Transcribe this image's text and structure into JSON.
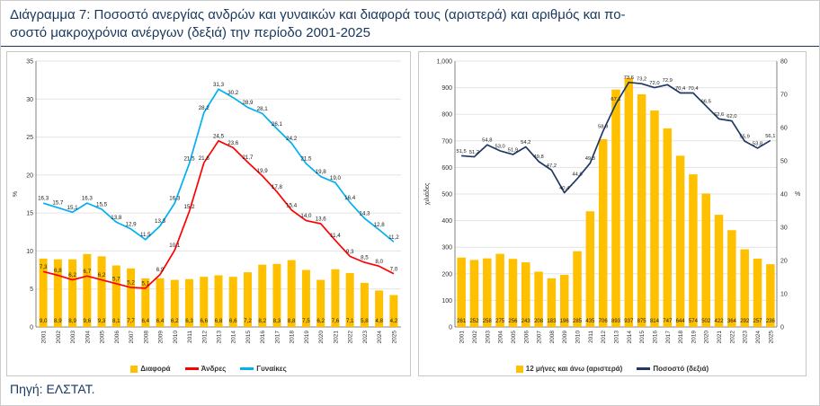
{
  "header": {
    "title_line1": "Διάγραμμα 7: Ποσοστό ανεργίας ανδρών και γυναικών και διαφορά τους (αριστερά) και αριθμός και πο-",
    "title_line2": "σοστό μακροχρόνια ανέργων (δεξιά) την περίοδο 2001-2025"
  },
  "footer": {
    "source": "Πηγή: ΕΛΣΤΑΤ."
  },
  "colors": {
    "accent_navy": "#17375E",
    "bar_yellow": "#FFC000",
    "line_red": "#FF0000",
    "line_lightblue": "#00B0F0",
    "line_navy": "#1F3864"
  },
  "chart_data": [
    {
      "name": "unemployment-rate-by-sex",
      "type": "bar+line",
      "grid": true,
      "legend_position": "bottom",
      "categories": [
        "2001",
        "2002",
        "2003",
        "2004",
        "2005",
        "2006",
        "2007",
        "2008",
        "2009",
        "2010",
        "2011",
        "2012",
        "2013",
        "2014",
        "2015",
        "2016",
        "2017",
        "2018",
        "2019",
        "2020",
        "2021",
        "2022",
        "2023",
        "2024",
        "2025"
      ],
      "axes": {
        "left": {
          "title": "%",
          "range": [
            0,
            35
          ],
          "ticks": [
            0,
            5,
            10,
            15,
            20,
            25,
            30,
            35
          ],
          "labels": [
            "0",
            "5",
            "10",
            "15",
            "20",
            "25",
            "30",
            "35"
          ]
        }
      },
      "series": [
        {
          "name": "Διαφορά",
          "type": "bar",
          "axis": "left",
          "color": "#FFC000",
          "label_mode": "bottom",
          "label_fmt": "dec1",
          "label_size": 6.2,
          "values": [
            9.0,
            8.9,
            8.9,
            9.6,
            9.3,
            8.1,
            7.7,
            6.4,
            6.4,
            6.2,
            6.3,
            6.6,
            6.8,
            6.6,
            7.2,
            8.2,
            8.3,
            8.8,
            7.5,
            6.2,
            7.6,
            7.1,
            5.8,
            4.8,
            4.2
          ]
        },
        {
          "name": "Άνδρες",
          "type": "line",
          "axis": "left",
          "color": "#FF0000",
          "label_mode": "above",
          "label_fmt": "dec1",
          "label_size": 6.2,
          "values": [
            7.3,
            6.8,
            6.2,
            6.7,
            6.2,
            5.7,
            5.2,
            5.1,
            6.9,
            10.1,
            15.2,
            21.6,
            24.5,
            23.6,
            21.7,
            19.9,
            17.8,
            15.4,
            14.0,
            13.6,
            11.4,
            9.3,
            8.5,
            8.0,
            7.0
          ]
        },
        {
          "name": "Γυναίκες",
          "type": "line",
          "axis": "left",
          "color": "#00B0F0",
          "label_mode": "above",
          "label_fmt": "dec1",
          "label_size": 6.2,
          "values": [
            16.3,
            15.7,
            15.1,
            16.3,
            15.5,
            13.8,
            12.9,
            11.5,
            13.3,
            16.3,
            21.5,
            28.2,
            31.3,
            30.2,
            28.9,
            28.1,
            26.1,
            24.2,
            21.5,
            19.8,
            19.0,
            16.4,
            14.3,
            12.8,
            11.2
          ]
        }
      ]
    },
    {
      "name": "long-term-unemployed",
      "type": "bar+line",
      "grid": true,
      "legend_position": "bottom",
      "categories": [
        "2001",
        "2002",
        "2003",
        "2004",
        "2005",
        "2006",
        "2007",
        "2008",
        "2009",
        "2010",
        "2011",
        "2012",
        "2013",
        "2014",
        "2015",
        "2016",
        "2017",
        "2018",
        "2019",
        "2020",
        "2021",
        "2022",
        "2023",
        "2024",
        "2025"
      ],
      "axes": {
        "left": {
          "title": "χιλιάδες",
          "range": [
            0,
            1000
          ],
          "ticks": [
            0,
            100,
            200,
            300,
            400,
            500,
            600,
            700,
            800,
            900,
            1000
          ],
          "labels": [
            "0",
            "100",
            "200",
            "300",
            "400",
            "500",
            "600",
            "700",
            "800",
            "900",
            "1,000"
          ]
        },
        "right": {
          "title": "%",
          "range": [
            0,
            80
          ],
          "ticks": [
            0,
            10,
            20,
            30,
            40,
            50,
            60,
            70,
            80
          ],
          "labels": [
            "0",
            "10",
            "20",
            "30",
            "40",
            "50",
            "60",
            "70",
            "80"
          ]
        }
      },
      "series": [
        {
          "name": "12 μήνες και άνω (αριστερά)",
          "type": "bar",
          "axis": "left",
          "color": "#FFC000",
          "label_mode": "bottom",
          "label_fmt": "int",
          "label_size": 6,
          "values": [
            261,
            252,
            258,
            275,
            256,
            243,
            208,
            183,
            196,
            285,
            435,
            706,
            893,
            937,
            875,
            814,
            747,
            644,
            574,
            502,
            422,
            364,
            292,
            257,
            236
          ]
        },
        {
          "name": "Ποσοστό (δεξιά)",
          "type": "line",
          "axis": "right",
          "color": "#1F3864",
          "label_mode": "above",
          "label_fmt": "dec1",
          "label_size": 5.8,
          "values": [
            51.5,
            51.2,
            54.8,
            53.0,
            51.9,
            54.2,
            49.8,
            47.2,
            40.4,
            44.6,
            49.3,
            58.9,
            67.1,
            73.6,
            73.2,
            72.0,
            72.9,
            70.4,
            70.4,
            66.5,
            62.6,
            62.0,
            55.9,
            53.8,
            56.1
          ]
        }
      ]
    }
  ]
}
